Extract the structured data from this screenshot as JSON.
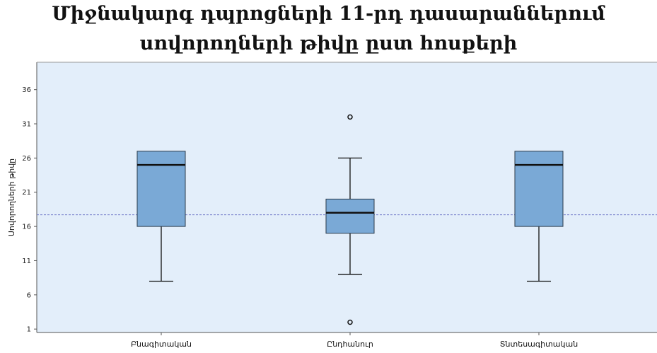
{
  "chart_data": {
    "type": "box",
    "title_lines": [
      "Միջնակարգ դպրոցների 11-րդ դասարաններում",
      "սովորողների թիվը ըստ հոսքերի"
    ],
    "ylabel": "Սովորողների թիվը",
    "xlabel": "",
    "ylim": [
      0.5,
      40
    ],
    "yticks": [
      1,
      6,
      11,
      16,
      21,
      26,
      31,
      36
    ],
    "reference_line": 17.7,
    "grid": false,
    "colors": {
      "plot_bg": "#e3eefa",
      "box_fill": "#7aa9d6",
      "ref_line": "#6f78c8"
    },
    "categories": [
      "Բնագիտական",
      "Ընդհանուր",
      "Տնտեսագիտական"
    ],
    "boxes": [
      {
        "category": "Բնագիտական",
        "min": 8,
        "q1": 16,
        "median": 25,
        "q3": 27,
        "max": 27,
        "outliers": []
      },
      {
        "category": "Ընդհանուր",
        "min": 9,
        "q1": 15,
        "median": 18,
        "q3": 20,
        "max": 26,
        "outliers": [
          32,
          2
        ]
      },
      {
        "category": "Տնտեսագիտական",
        "min": 8,
        "q1": 16,
        "median": 25,
        "q3": 27,
        "max": 27,
        "outliers": []
      }
    ]
  }
}
